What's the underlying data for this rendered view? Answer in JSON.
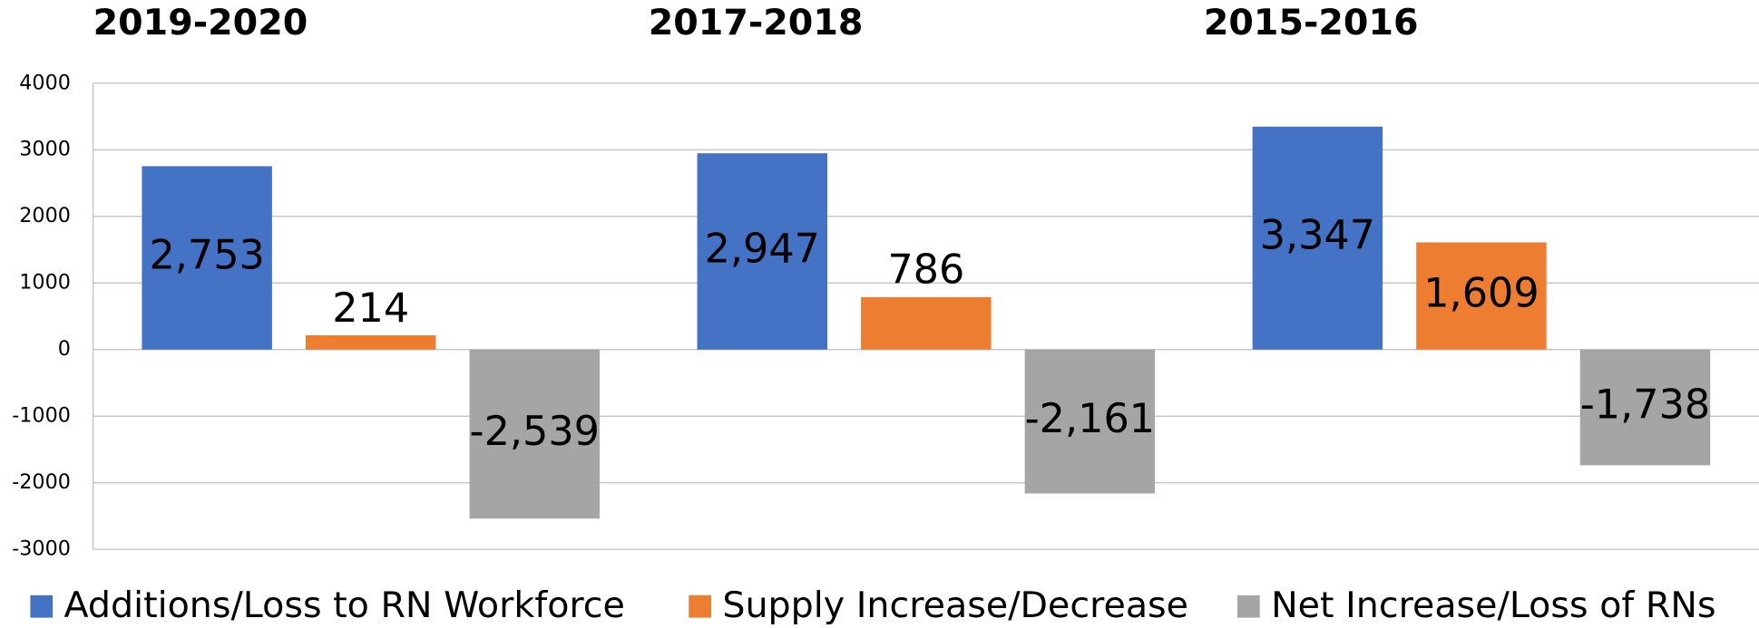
{
  "chart_data": {
    "type": "bar",
    "categories": [
      "2019-2020",
      "2017-2018",
      "2015-2016"
    ],
    "series": [
      {
        "name": "Additions/Loss to RN Workforce",
        "color": "#4472c4",
        "values": [
          2753,
          2947,
          3347
        ],
        "value_labels": [
          "2,753",
          "2,947",
          "3,347"
        ]
      },
      {
        "name": "Supply Increase/Decrease",
        "color": "#ed7d31",
        "values": [
          214,
          786,
          1609
        ],
        "value_labels": [
          "214",
          "786",
          "1,609"
        ]
      },
      {
        "name": "Net Increase/Loss of RNs",
        "color": "#a5a5a5",
        "values": [
          -2539,
          -2161,
          -1738
        ],
        "value_labels": [
          "-2,539",
          "-2,161",
          "-1,738"
        ]
      }
    ],
    "ylim": [
      -3000,
      4000
    ],
    "yticks": [
      -3000,
      -2000,
      -1000,
      0,
      1000,
      2000,
      3000,
      4000
    ],
    "grid": true,
    "legend": "bottom"
  }
}
